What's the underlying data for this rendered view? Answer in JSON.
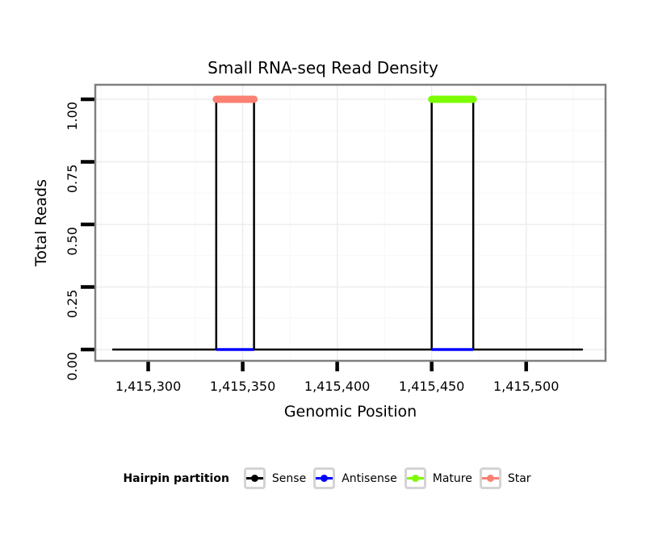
{
  "chart_data": {
    "type": "line",
    "title": "Small RNA-seq Read Density",
    "xlabel": "Genomic Position",
    "ylabel": "Total Reads",
    "xlim": [
      1415272,
      1415542
    ],
    "ylim": [
      -0.045,
      1.058
    ],
    "x_ticks": [
      {
        "value": 1415300,
        "label": "1,415,300"
      },
      {
        "value": 1415350,
        "label": "1,415,350"
      },
      {
        "value": 1415400,
        "label": "1,415,400"
      },
      {
        "value": 1415450,
        "label": "1,415,450"
      },
      {
        "value": 1415500,
        "label": "1,415,500"
      }
    ],
    "y_ticks": [
      {
        "value": 0.0,
        "label": "0.00"
      },
      {
        "value": 0.25,
        "label": "0.25"
      },
      {
        "value": 0.5,
        "label": "0.50"
      },
      {
        "value": 0.75,
        "label": "0.75"
      },
      {
        "value": 1.0,
        "label": "1.00"
      }
    ],
    "grid": {
      "major": true,
      "minor": true
    },
    "series": [
      {
        "name": "Sense",
        "color": "#000000",
        "kind": "step",
        "width": 2.5,
        "points_x": [
          1415281,
          1415336,
          1415336,
          1415356,
          1415356,
          1415450,
          1415450,
          1415472,
          1415472,
          1415530
        ],
        "points_y": [
          0,
          0,
          1,
          1,
          0,
          0,
          1,
          1,
          0,
          0
        ]
      },
      {
        "name": "Antisense",
        "color": "#0000ff",
        "kind": "segments",
        "width": 3.5,
        "y": 0,
        "segments": [
          [
            1415336,
            1415356
          ],
          [
            1415450,
            1415472
          ]
        ]
      },
      {
        "name": "Mature",
        "color": "#7cfc00",
        "kind": "segments",
        "width": 9,
        "y": 1,
        "segments": [
          [
            1415450,
            1415472
          ]
        ]
      },
      {
        "name": "Star",
        "color": "#fa8072",
        "kind": "segments",
        "width": 9,
        "y": 1,
        "segments": [
          [
            1415336,
            1415356
          ]
        ]
      }
    ],
    "legend": {
      "title": "Hairpin partition",
      "position": "bottom",
      "items": [
        {
          "label": "Sense",
          "color": "#000000"
        },
        {
          "label": "Antisense",
          "color": "#0000ff"
        },
        {
          "label": "Mature",
          "color": "#7cfc00"
        },
        {
          "label": "Star",
          "color": "#fa8072"
        }
      ]
    },
    "style": {
      "panel_border_color": "#808080",
      "grid_major_color": "#ececec",
      "grid_minor_color": "#f7f7f7",
      "tick_color": "#000000",
      "text_color": "#000000",
      "background": "#ffffff"
    }
  }
}
